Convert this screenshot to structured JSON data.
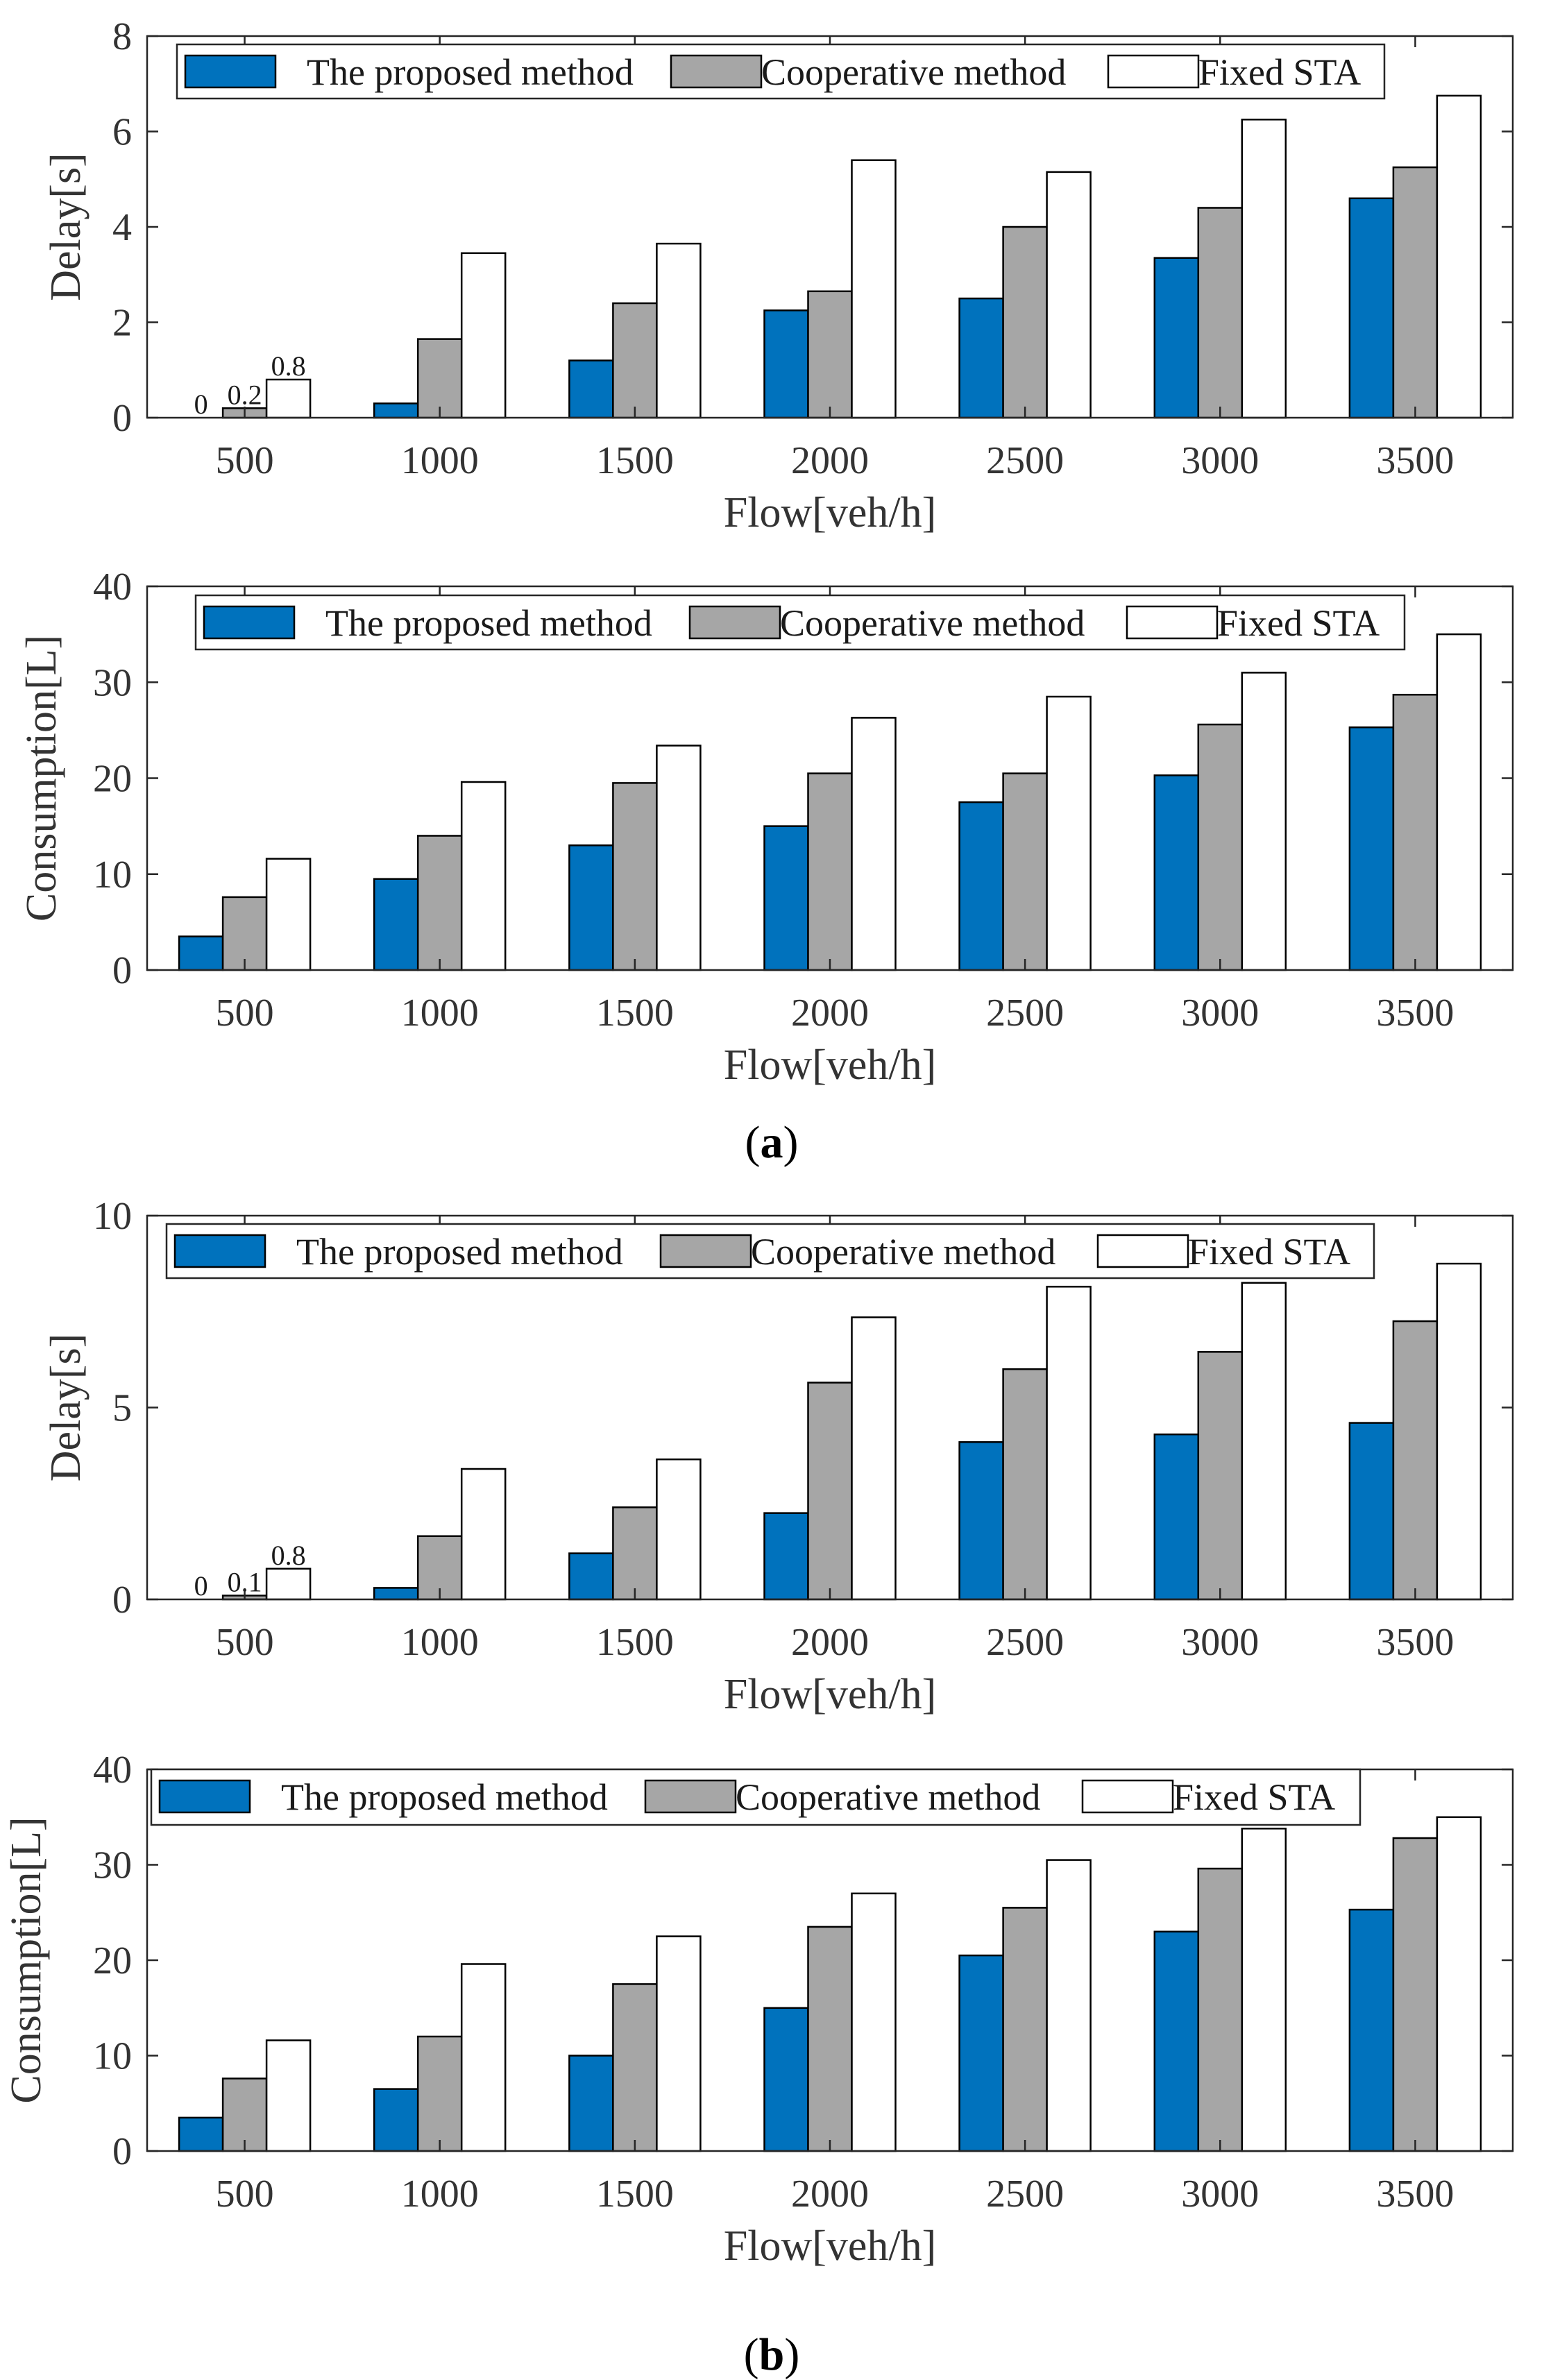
{
  "colors": {
    "proposed": "#0072BD",
    "cooperative": "#A6A6A6",
    "fixed": "#FFFFFF",
    "axis": "#262626",
    "text": "#333333"
  },
  "captions": [
    {
      "open": "(",
      "letter": "a",
      "close": ")"
    },
    {
      "open": "(",
      "letter": "b",
      "close": ")"
    }
  ],
  "chart_data": [
    {
      "type": "bar",
      "panel": "a",
      "title": "",
      "xlabel": "Flow[veh/h]",
      "ylabel": "Delay[s]",
      "ylim": [
        0,
        8
      ],
      "yticks": [
        "0",
        "2",
        "4",
        "6",
        "8"
      ],
      "categories": [
        "500",
        "1000",
        "1500",
        "2000",
        "2500",
        "3000",
        "3500"
      ],
      "legend_position": "top",
      "series": [
        {
          "name": "The proposed method",
          "values": [
            0,
            0.3,
            1.2,
            2.25,
            2.5,
            3.35,
            4.6
          ]
        },
        {
          "name": "Cooperative method",
          "values": [
            0.2,
            1.65,
            2.4,
            2.65,
            4.0,
            4.4,
            5.25
          ]
        },
        {
          "name": "Fixed STA",
          "values": [
            0.8,
            3.45,
            3.65,
            5.4,
            5.15,
            6.25,
            6.75
          ]
        }
      ],
      "data_labels": [
        "0",
        "0.2",
        "0.8"
      ]
    },
    {
      "type": "bar",
      "panel": "a",
      "title": "",
      "xlabel": "Flow[veh/h]",
      "ylabel": "Consumption[L]",
      "ylim": [
        0,
        40
      ],
      "yticks": [
        "0",
        "10",
        "20",
        "30",
        "40"
      ],
      "categories": [
        "500",
        "1000",
        "1500",
        "2000",
        "2500",
        "3000",
        "3500"
      ],
      "legend_position": "top",
      "series": [
        {
          "name": "The proposed method",
          "values": [
            3.5,
            9.5,
            13,
            15,
            17.5,
            20.3,
            25.3
          ]
        },
        {
          "name": "Cooperative method",
          "values": [
            7.6,
            14,
            19.5,
            20.5,
            20.5,
            25.6,
            28.7
          ]
        },
        {
          "name": "Fixed STA",
          "values": [
            11.6,
            19.6,
            23.4,
            26.3,
            28.5,
            31,
            35
          ]
        }
      ]
    },
    {
      "type": "bar",
      "panel": "b",
      "title": "",
      "xlabel": "Flow[veh/h]",
      "ylabel": "Delay[s]",
      "ylim": [
        0,
        10
      ],
      "yticks": [
        "0",
        "5",
        "10"
      ],
      "categories": [
        "500",
        "1000",
        "1500",
        "2000",
        "2500",
        "3000",
        "3500"
      ],
      "legend_position": "top",
      "series": [
        {
          "name": "The proposed method",
          "values": [
            0,
            0.3,
            1.2,
            2.25,
            4.1,
            4.3,
            4.6
          ]
        },
        {
          "name": "Cooperative method",
          "values": [
            0.1,
            1.65,
            2.4,
            5.65,
            6.0,
            6.45,
            7.25
          ]
        },
        {
          "name": "Fixed STA",
          "values": [
            0.8,
            3.4,
            3.65,
            7.35,
            8.15,
            8.25,
            8.75
          ]
        }
      ],
      "data_labels": [
        "0",
        "0.1",
        "0.8"
      ]
    },
    {
      "type": "bar",
      "panel": "b",
      "title": "",
      "xlabel": "Flow[veh/h]",
      "ylabel": "Consumption[L]",
      "ylim": [
        0,
        40
      ],
      "yticks": [
        "0",
        "10",
        "20",
        "30",
        "40"
      ],
      "categories": [
        "500",
        "1000",
        "1500",
        "2000",
        "2500",
        "3000",
        "3500"
      ],
      "legend_position": "top",
      "series": [
        {
          "name": "The proposed method",
          "values": [
            3.5,
            6.5,
            10,
            15,
            20.5,
            23,
            25.3
          ]
        },
        {
          "name": "Cooperative method",
          "values": [
            7.6,
            12,
            17.5,
            23.5,
            25.5,
            29.6,
            32.8
          ]
        },
        {
          "name": "Fixed STA",
          "values": [
            11.6,
            19.6,
            22.5,
            27,
            30.5,
            33.8,
            35
          ]
        }
      ]
    }
  ]
}
